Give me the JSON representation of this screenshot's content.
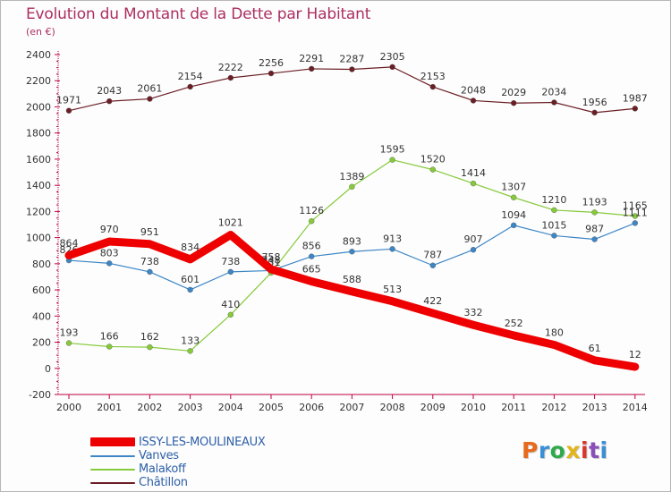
{
  "header": {
    "title": "Evolution du Montant de la Dette par Habitant",
    "unit_note": "(en €)"
  },
  "logo": {
    "text": "Proxiti",
    "colors": [
      "#e86a1c",
      "#3b8fd6",
      "#2faa4a",
      "#e2b51d",
      "#d6382c",
      "#8a4fb8",
      "#3b8fd6"
    ]
  },
  "chart_data": {
    "type": "line",
    "categories": [
      "2000",
      "2001",
      "2002",
      "2003",
      "2004",
      "2005",
      "2006",
      "2007",
      "2008",
      "2009",
      "2010",
      "2011",
      "2012",
      "2013",
      "2014"
    ],
    "ylim": [
      -200,
      2400
    ],
    "ytick_values": [
      -200,
      0,
      200,
      400,
      600,
      800,
      1000,
      1200,
      1400,
      1600,
      1800,
      2000,
      2200,
      2400
    ],
    "grid": false,
    "legend_position": "bottom-left",
    "series": [
      {
        "name": "Châtillon",
        "color": "#6b1e25",
        "values": [
          1971,
          2043,
          2061,
          2154,
          2222,
          2256,
          2291,
          2287,
          2305,
          2153,
          2048,
          2029,
          2034,
          1956,
          1987
        ]
      },
      {
        "name": "Malakoff",
        "color": "#86ca3a",
        "values": [
          193,
          166,
          162,
          133,
          410,
          731,
          1126,
          1389,
          1595,
          1520,
          1414,
          1307,
          1210,
          1193,
          1165
        ]
      },
      {
        "name": "Vanves",
        "color": "#3d86c6",
        "values": [
          826,
          803,
          738,
          601,
          738,
          748,
          856,
          893,
          913,
          787,
          907,
          1094,
          1015,
          987,
          1111
        ]
      },
      {
        "name": "ISSY-LES-MOULINEAUX",
        "color": "#ee0000",
        "values": [
          864,
          970,
          951,
          834,
          1021,
          758,
          665,
          588,
          513,
          422,
          332,
          252,
          180,
          61,
          12
        ]
      }
    ]
  }
}
